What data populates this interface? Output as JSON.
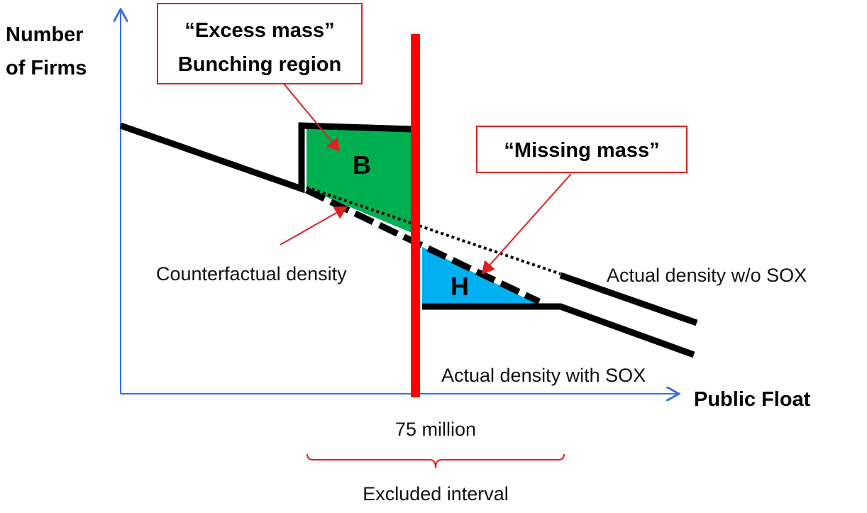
{
  "axis": {
    "y_label_line1": "Number",
    "y_label_line2": "of Firms",
    "x_label": "Public Float"
  },
  "boxes": {
    "excess_line1": "“Excess mass”",
    "excess_line2": "Bunching region",
    "missing": "“Missing mass”"
  },
  "regions": {
    "bunching": "B",
    "missing": "H"
  },
  "labels": {
    "counterfactual": "Counterfactual density",
    "without_sox": "Actual density w/o SOX",
    "with_sox": "Actual density with SOX",
    "threshold": "75 million",
    "excluded": "Excluded interval"
  }
}
